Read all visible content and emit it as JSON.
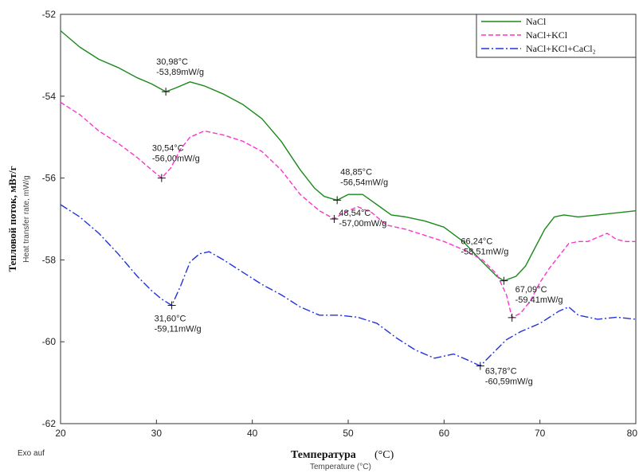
{
  "chart_data": {
    "type": "line",
    "xlim": [
      20,
      80
    ],
    "ylim": [
      -62,
      -52
    ],
    "x_ticks": [
      "20",
      "30",
      "40",
      "50",
      "60",
      "70",
      "80"
    ],
    "y_ticks": [
      "-52",
      "-54",
      "-56",
      "-58",
      "-60",
      "-62"
    ],
    "ylabel": "Тепловой поток, мВт/г",
    "ylabel_sub": "Heat transfer rate, mW/g",
    "xlabel": "Температура",
    "xlabel_unit": "(°C)",
    "xlabel_sub": "Temperature (°C)",
    "corner_note": "Exo auf",
    "legend_position": "top-right",
    "series": [
      {
        "name": "NaCl",
        "color": "#1a8a1a",
        "dash": "solid",
        "x": [
          20,
          22,
          24,
          26,
          28,
          29.5,
          30.98,
          32,
          33.5,
          35,
          37,
          39,
          41,
          43,
          45,
          46.5,
          47.5,
          48.85,
          50,
          51.5,
          53,
          54.5,
          56,
          58,
          60,
          62,
          64,
          65.5,
          66.24,
          67.5,
          68.5,
          69.5,
          70.5,
          71.5,
          72.5,
          74,
          76,
          78,
          80
        ],
        "y": [
          -52.4,
          -52.8,
          -53.1,
          -53.3,
          -53.55,
          -53.7,
          -53.89,
          -53.8,
          -53.65,
          -53.75,
          -53.95,
          -54.2,
          -54.55,
          -55.1,
          -55.8,
          -56.25,
          -56.45,
          -56.54,
          -56.4,
          -56.4,
          -56.65,
          -56.9,
          -56.95,
          -57.05,
          -57.2,
          -57.55,
          -58.05,
          -58.4,
          -58.51,
          -58.4,
          -58.15,
          -57.7,
          -57.25,
          -56.95,
          -56.9,
          -56.95,
          -56.9,
          -56.85,
          -56.8
        ]
      },
      {
        "name": "NaCl+KCl",
        "color": "#ff33cc",
        "dash": "dashed",
        "x": [
          20,
          22,
          24,
          26,
          28,
          29.5,
          30.54,
          31.5,
          32.5,
          33.5,
          35,
          37,
          39,
          41,
          43,
          45,
          47,
          48.54,
          49.5,
          51,
          52.5,
          54,
          56,
          58,
          60,
          62,
          64,
          65.5,
          66.5,
          67.09,
          68,
          69,
          70,
          71,
          72,
          73,
          74,
          75,
          76,
          77,
          78,
          79,
          80
        ],
        "y": [
          -54.15,
          -54.45,
          -54.85,
          -55.15,
          -55.5,
          -55.8,
          -56.0,
          -55.75,
          -55.3,
          -55.0,
          -54.85,
          -54.95,
          -55.1,
          -55.35,
          -55.8,
          -56.4,
          -56.8,
          -57.0,
          -56.85,
          -56.7,
          -56.85,
          -57.15,
          -57.25,
          -57.4,
          -57.55,
          -57.75,
          -58.0,
          -58.35,
          -58.85,
          -59.41,
          -59.3,
          -59.0,
          -58.55,
          -58.2,
          -57.9,
          -57.6,
          -57.55,
          -57.55,
          -57.45,
          -57.35,
          -57.5,
          -57.55,
          -57.55
        ]
      },
      {
        "name": "NaCl+KCl+CaCl₂",
        "color": "#2233dd",
        "dash": "dashdot",
        "x": [
          20,
          22,
          24,
          26,
          28,
          29.5,
          30.5,
          31.6,
          32.5,
          33.5,
          34.5,
          35.5,
          37,
          39,
          41,
          43,
          45,
          47,
          49,
          51,
          53,
          55,
          57,
          59,
          61,
          62.5,
          63.78,
          65,
          66.5,
          68,
          70,
          71,
          72,
          73,
          74,
          76,
          78,
          80
        ],
        "y": [
          -56.65,
          -56.95,
          -57.35,
          -57.85,
          -58.4,
          -58.75,
          -58.95,
          -59.11,
          -58.65,
          -58.05,
          -57.85,
          -57.8,
          -58.0,
          -58.3,
          -58.6,
          -58.85,
          -59.15,
          -59.35,
          -59.35,
          -59.4,
          -59.55,
          -59.9,
          -60.2,
          -60.4,
          -60.3,
          -60.45,
          -60.59,
          -60.3,
          -59.95,
          -59.75,
          -59.55,
          -59.4,
          -59.25,
          -59.15,
          -59.35,
          -59.45,
          -59.4,
          -59.45
        ]
      }
    ],
    "annotations": [
      {
        "x": 30.98,
        "y": -53.89,
        "line1": "30,98°C",
        "line2": "-53,89mW/g",
        "pos": "above"
      },
      {
        "x": 30.54,
        "y": -56.0,
        "line1": "30,54°C",
        "line2": "-56,00mW/g",
        "pos": "above"
      },
      {
        "x": 31.6,
        "y": -59.11,
        "line1": "31,60°C",
        "line2": "-59,11mW/g",
        "pos": "below"
      },
      {
        "x": 48.85,
        "y": -56.54,
        "line1": "48,85°C",
        "line2": "-56,54mW/g",
        "pos": "above-right"
      },
      {
        "x": 48.54,
        "y": -57.0,
        "line1": "48,54°C",
        "line2": "-57,00mW/g",
        "pos": "right"
      },
      {
        "x": 66.24,
        "y": -58.51,
        "line1": "66,24°C",
        "line2": "-58,51mW/g",
        "pos": "above-left"
      },
      {
        "x": 67.09,
        "y": -59.41,
        "line1": "67,09°C",
        "line2": "-59,41mW/g",
        "pos": "above-right"
      },
      {
        "x": 63.78,
        "y": -60.59,
        "line1": "63,78°C",
        "line2": "-60,59mW/g",
        "pos": "below-right"
      }
    ]
  }
}
